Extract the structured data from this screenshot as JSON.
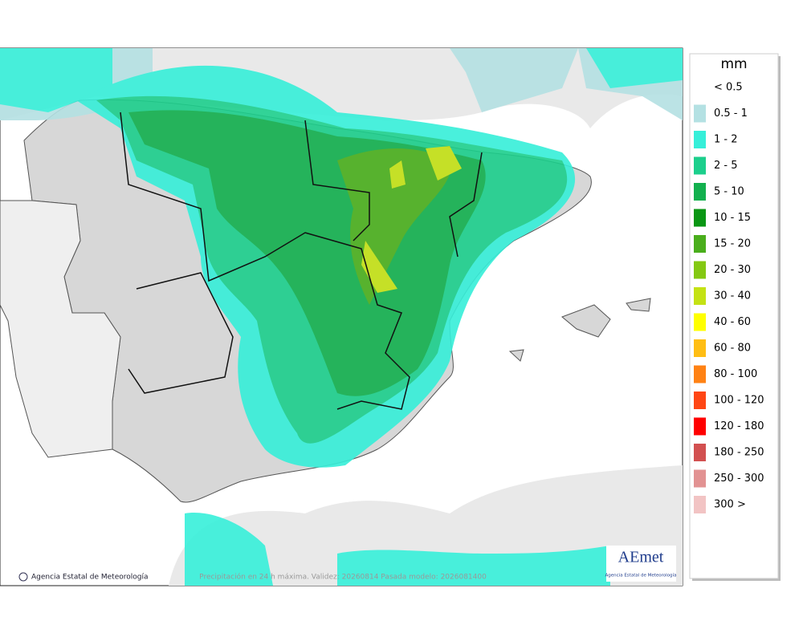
{
  "legend": {
    "title": "mm",
    "items": [
      {
        "label": "< 0.5",
        "color": null
      },
      {
        "label": "0.5 - 1",
        "color": "#b4e1e3"
      },
      {
        "label": "1 - 2",
        "color": "#36efd9"
      },
      {
        "label": "2 - 5",
        "color": "#1ccf8c"
      },
      {
        "label": "5 - 10",
        "color": "#12b04e"
      },
      {
        "label": "10 - 15",
        "color": "#0a9614"
      },
      {
        "label": "15 - 20",
        "color": "#4aae1c"
      },
      {
        "label": "20 - 30",
        "color": "#84c812"
      },
      {
        "label": "30 - 40",
        "color": "#c4e214"
      },
      {
        "label": "40 - 60",
        "color": "#ffff00"
      },
      {
        "label": "60 - 80",
        "color": "#ffbe14"
      },
      {
        "label": "80 - 100",
        "color": "#ff8214"
      },
      {
        "label": "100 - 120",
        "color": "#ff4614"
      },
      {
        "label": "120 - 180",
        "color": "#ff0000"
      },
      {
        "label": "180 - 250",
        "color": "#d25050"
      },
      {
        "label": "250 - 300",
        "color": "#e29292"
      },
      {
        "label": "300 >",
        "color": "#f2c4c4"
      }
    ]
  },
  "footer": {
    "credit": "Agencia Estatal de Meteorología",
    "caption": "Precipitación en 24 h máxima. Validez: 20260814 Pasada modelo: 2026081400"
  },
  "logo": {
    "name": "AEmet",
    "subtitle": "Agencia Estatal de Meteorología"
  }
}
